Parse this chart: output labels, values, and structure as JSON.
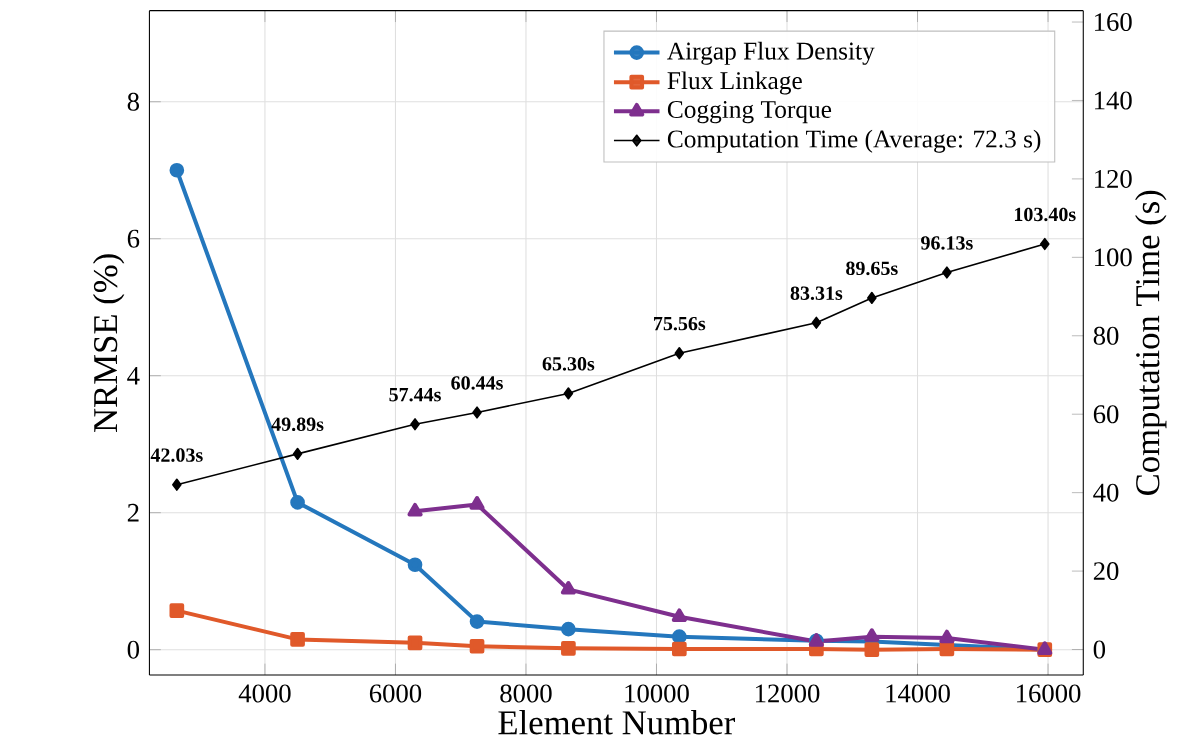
{
  "chart_data": {
    "type": "line",
    "xlabel": "Element Number",
    "ylabel": "NRMSE (%)",
    "y2label": "Computation Time (s)",
    "x": [
      2650,
      4500,
      6300,
      7250,
      8650,
      10350,
      12450,
      13300,
      14450,
      15950
    ],
    "series": [
      {
        "name": "Airgap Flux Density",
        "color": "#2477bd",
        "marker": "circle",
        "values": [
          7.0,
          2.15,
          1.24,
          0.41,
          0.3,
          0.19,
          0.13,
          0.12,
          0.07,
          0.0
        ]
      },
      {
        "name": "Flux Linkage",
        "color": "#e0592a",
        "marker": "square",
        "values": [
          0.57,
          0.15,
          0.1,
          0.05,
          0.02,
          0.01,
          0.01,
          0.0,
          0.01,
          0.0
        ]
      },
      {
        "name": "Cogging Torque",
        "color": "#7e2f8e",
        "marker": "triangle",
        "values": [
          null,
          null,
          2.02,
          2.12,
          0.88,
          0.48,
          0.12,
          0.19,
          0.17,
          0.0
        ]
      },
      {
        "name": "Computation Time (Average: 72.3 s)",
        "color": "#000000",
        "marker": "diamond",
        "axis": "y2",
        "values": [
          42.03,
          49.89,
          57.44,
          60.44,
          65.3,
          75.56,
          83.31,
          89.65,
          96.13,
          103.4
        ],
        "value_labels": [
          "42.03s",
          "49.89s",
          "57.44s",
          "60.44s",
          "65.30s",
          "75.56s",
          "83.31s",
          "89.65s",
          "96.13s",
          "103.40s"
        ]
      }
    ],
    "xlim": [
      2230,
      16540
    ],
    "xticks": [
      4000,
      6000,
      8000,
      10000,
      12000,
      14000,
      16000
    ],
    "ylim": [
      -0.37,
      9.33
    ],
    "yticks": [
      0,
      2,
      4,
      6,
      8
    ],
    "y2lim": [
      -6.5,
      162.9
    ],
    "y2ticks": [
      0,
      20,
      40,
      60,
      80,
      100,
      120,
      140,
      160
    ],
    "grid": true,
    "legend": "top right"
  }
}
